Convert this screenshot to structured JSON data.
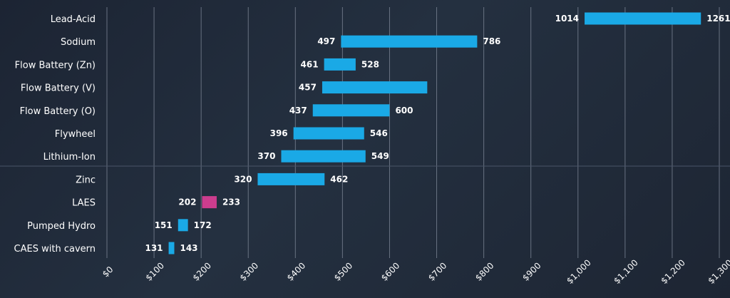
{
  "chart_data": {
    "type": "bar",
    "orientation": "horizontal-range",
    "categories": [
      "Lead-Acid",
      "Sodium",
      "Flow Battery (Zn)",
      "Flow Battery (V)",
      "Flow Battery (O)",
      "Flywheel",
      "Lithium-Ion",
      "Zinc",
      "LAES",
      "Pumped Hydro",
      "CAES with cavern"
    ],
    "low_values": [
      1014,
      497,
      461,
      457,
      437,
      396,
      370,
      320,
      202,
      151,
      131
    ],
    "high_values": [
      1261,
      786,
      528,
      680,
      600,
      546,
      549,
      462,
      233,
      172,
      143
    ],
    "low_labels": [
      "1014",
      "497",
      "461",
      "457",
      "437",
      "396",
      "370",
      "320",
      "202",
      "151",
      "131"
    ],
    "high_labels": [
      "1261",
      "786",
      "528",
      "",
      "600",
      "546",
      "549",
      "462",
      "233",
      "172",
      "143"
    ],
    "bar_colors": [
      "#1aa9e6",
      "#1aa9e6",
      "#1aa9e6",
      "#1aa9e6",
      "#1aa9e6",
      "#1aa9e6",
      "#1aa9e6",
      "#1aa9e6",
      "#cc3d8e",
      "#1aa9e6",
      "#1aa9e6"
    ],
    "x_ticks": [
      "$0",
      "$100",
      "$200",
      "$300",
      "$400",
      "$500",
      "$600",
      "$700",
      "$800",
      "$900",
      "$1,000",
      "$1,100",
      "$1,200",
      "$1,300"
    ],
    "xlim": [
      0,
      1300
    ],
    "grid": true,
    "title": "",
    "xlabel": "",
    "ylabel": ""
  }
}
